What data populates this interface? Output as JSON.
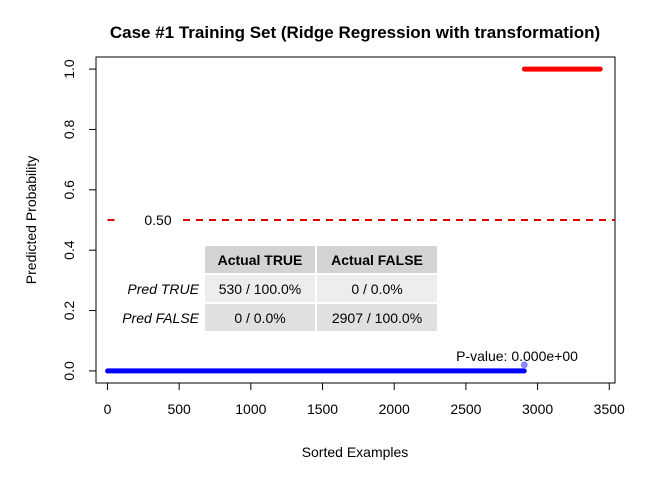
{
  "chart_data": {
    "type": "scatter",
    "title": "Case #1 Training Set (Ridge Regression with transformation)",
    "xlabel": "Sorted Examples",
    "ylabel": "Predicted Probability",
    "xlim": [
      -80,
      3540
    ],
    "ylim": [
      -0.04,
      1.04
    ],
    "x_ticks": [
      0,
      500,
      1000,
      1500,
      2000,
      2500,
      3000,
      3500
    ],
    "x_tick_labels": [
      "0",
      "500",
      "1000",
      "1500",
      "2000",
      "2500",
      "3000",
      "3500"
    ],
    "y_ticks": [
      0.0,
      0.2,
      0.4,
      0.6,
      0.8,
      1.0
    ],
    "y_tick_labels": [
      "0.0",
      "0.2",
      "0.4",
      "0.6",
      "0.8",
      "1.0"
    ],
    "series": [
      {
        "name": "Actual FALSE",
        "color": "#0000ff",
        "x_start": 1,
        "x_end": 2907,
        "y": 0.0
      },
      {
        "name": "Actual TRUE",
        "color": "#ff0000",
        "x_start": 2908,
        "x_end": 3437,
        "y": 1.0
      }
    ],
    "threshold": {
      "value": 0.5,
      "label": "0.50",
      "color": "#e00000"
    },
    "marker": {
      "x": 2907,
      "y": 0.01,
      "color": "#8a8aff"
    },
    "pvalue_label": "P-value: 0.000e+00",
    "confusion_table": {
      "col_headers": [
        "Actual TRUE",
        "Actual FALSE"
      ],
      "rows": [
        {
          "label": "Pred TRUE",
          "cells": [
            "530 / 100.0%",
            "0 / 0.0%"
          ]
        },
        {
          "label": "Pred FALSE",
          "cells": [
            "0 / 0.0%",
            "2907 / 100.0%"
          ]
        }
      ],
      "header_color": "#d3d3d3",
      "cell_color_1": "#ededed",
      "cell_color_2": "#e0e0e0"
    }
  }
}
